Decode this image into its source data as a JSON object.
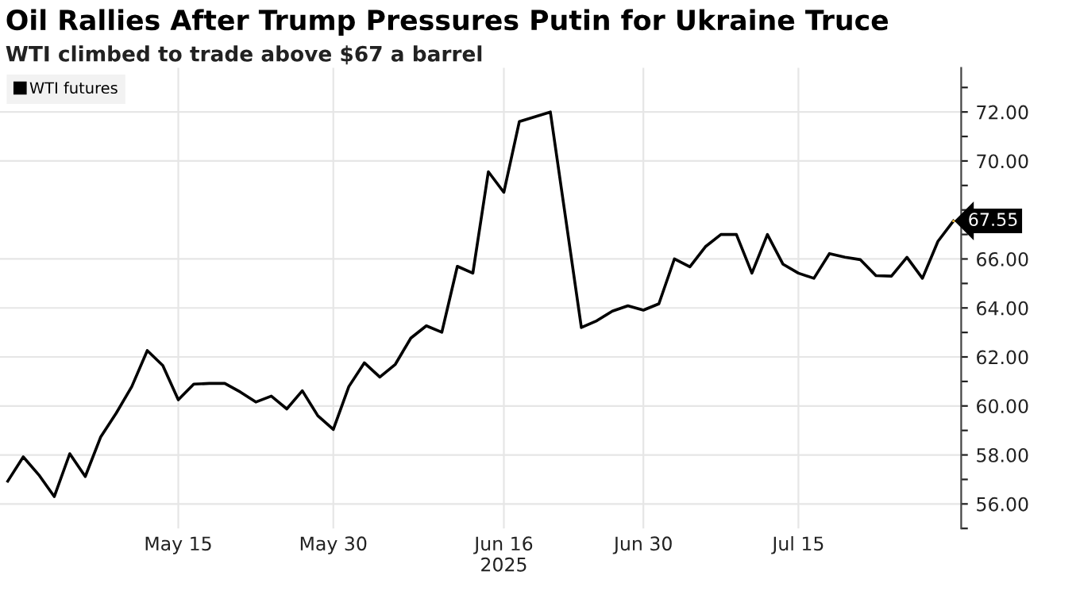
{
  "chart_data": {
    "type": "line",
    "title": "Oil Rallies After Trump Pressures Putin for Ukraine Truce",
    "subtitle": "WTI climbed to trade above $67 a barrel",
    "categories": [
      null,
      null,
      null,
      null,
      null,
      null,
      null,
      null,
      null,
      null,
      null,
      "May 15",
      null,
      null,
      null,
      null,
      null,
      null,
      null,
      null,
      null,
      "May 30",
      null,
      null,
      null,
      null,
      null,
      null,
      null,
      null,
      null,
      null,
      "Jun 16\n2025",
      null,
      null,
      null,
      null,
      null,
      null,
      null,
      null,
      "Jun 30",
      null,
      null,
      null,
      null,
      null,
      null,
      null,
      null,
      null,
      "Jul 15",
      null,
      null,
      null,
      null,
      null,
      null,
      null,
      null,
      null,
      null
    ],
    "series": [
      {
        "name": "WTI futures",
        "color": "#000000",
        "values": [
          56.93,
          57.92,
          57.19,
          56.3,
          58.05,
          57.12,
          58.74,
          59.71,
          60.79,
          62.26,
          61.65,
          60.25,
          60.89,
          60.92,
          60.92,
          60.57,
          60.16,
          60.4,
          59.88,
          60.62,
          59.6,
          59.04,
          60.79,
          61.76,
          61.18,
          61.7,
          62.77,
          63.27,
          63.01,
          65.7,
          65.42,
          69.56,
          68.72,
          71.61,
          71.8,
          72.0,
          67.6,
          63.2,
          63.48,
          63.87,
          64.09,
          63.91,
          64.17,
          66.0,
          65.68,
          66.5,
          67.0,
          67.0,
          65.42,
          67.0,
          65.79,
          65.42,
          65.21,
          66.22,
          66.07,
          65.97,
          65.32,
          65.3,
          66.07,
          65.21,
          66.72,
          67.55
        ],
        "value_labels": [
          null,
          null,
          null,
          null,
          null,
          null,
          null,
          null,
          null,
          null,
          null,
          null,
          null,
          null,
          null,
          null,
          null,
          null,
          null,
          null,
          null,
          null,
          null,
          null,
          null,
          null,
          null,
          null,
          null,
          null,
          null,
          null,
          null,
          null,
          null,
          null,
          null,
          null,
          null,
          null,
          null,
          null,
          null,
          null,
          null,
          null,
          null,
          null,
          null,
          null,
          null,
          null,
          null,
          null,
          null,
          null,
          null,
          null,
          null,
          null,
          null,
          "67.55"
        ]
      }
    ],
    "ylim": [
      55,
      73.8
    ],
    "yticks": [
      {
        "value": 55,
        "label": null
      },
      {
        "value": 56,
        "label": "56.00"
      },
      {
        "value": 57,
        "label": null
      },
      {
        "value": 58,
        "label": "58.00"
      },
      {
        "value": 59,
        "label": null
      },
      {
        "value": 60,
        "label": "60.00"
      },
      {
        "value": 61,
        "label": null
      },
      {
        "value": 62,
        "label": "62.00"
      },
      {
        "value": 63,
        "label": null
      },
      {
        "value": 64,
        "label": "64.00"
      },
      {
        "value": 65,
        "label": null
      },
      {
        "value": 66,
        "label": "66.00"
      },
      {
        "value": 67,
        "label": null
      },
      {
        "value": 68,
        "label": null
      },
      {
        "value": 69,
        "label": null
      },
      {
        "value": 70,
        "label": "70.00"
      },
      {
        "value": 71,
        "label": null
      },
      {
        "value": 72,
        "label": "72.00"
      },
      {
        "value": 73,
        "label": null
      }
    ],
    "grid": true,
    "legend": "top left",
    "marker": "none",
    "line_style": "solid"
  }
}
